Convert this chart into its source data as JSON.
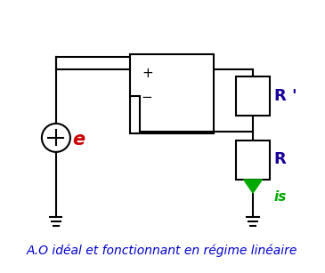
{
  "title": "A.O idéal et fonctionnant en régime linéaire",
  "title_color": "#0000cc",
  "title_fontsize": 10,
  "bg_color": "#ffffff",
  "label_e": "e",
  "label_e_color": "#cc0000",
  "label_R_prime": "R '",
  "label_R": "R",
  "label_is": "is",
  "label_is_color": "#00aa00",
  "label_dark": "#1a0099"
}
